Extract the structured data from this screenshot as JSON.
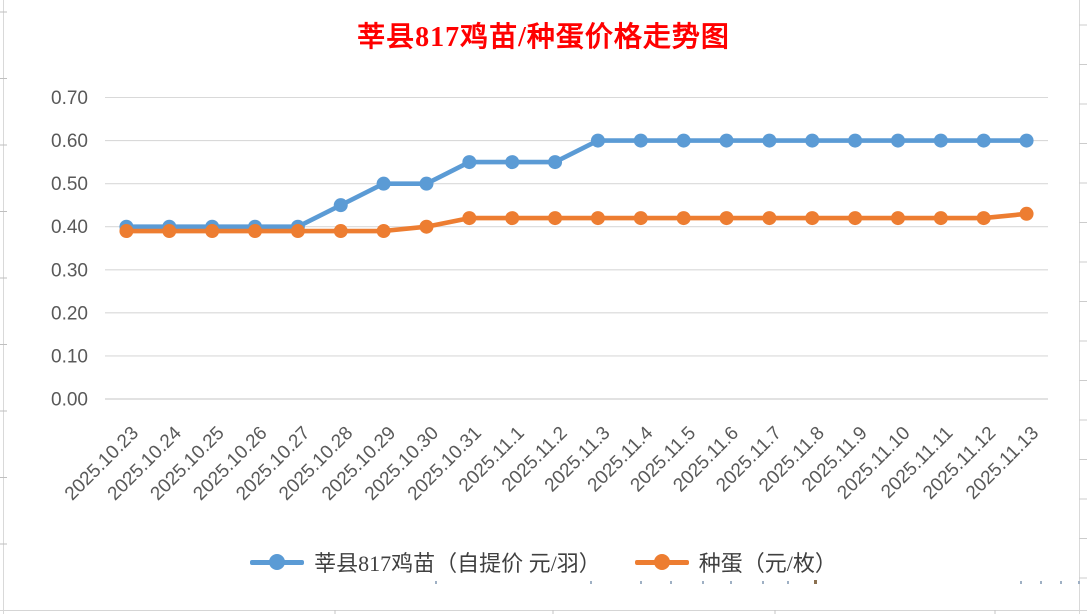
{
  "chart_data": {
    "type": "line",
    "title": "莘县817鸡苗/种蛋价格走势图",
    "title_color": "#FF0000",
    "xlabel": "",
    "ylabel": "",
    "categories": [
      "2025.10.23",
      "2025.10.24",
      "2025.10.25",
      "2025.10.26",
      "2025.10.27",
      "2025.10.28",
      "2025.10.29",
      "2025.10.30",
      "2025.10.31",
      "2025.11.1",
      "2025.11.2",
      "2025.11.3",
      "2025.11.4",
      "2025.11.5",
      "2025.11.6",
      "2025.11.7",
      "2025.11.8",
      "2025.11.9",
      "2025.11.10",
      "2025.11.11",
      "2025.11.12",
      "2025.11.13"
    ],
    "series": [
      {
        "name": "莘县817鸡苗（自提价 元/羽）",
        "color": "#5B9BD5",
        "values": [
          0.4,
          0.4,
          0.4,
          0.4,
          0.4,
          0.45,
          0.5,
          0.5,
          0.55,
          0.55,
          0.55,
          0.6,
          0.6,
          0.6,
          0.6,
          0.6,
          0.6,
          0.6,
          0.6,
          0.6,
          0.6,
          0.6
        ]
      },
      {
        "name": "种蛋（元/枚）",
        "color": "#ED7D31",
        "values": [
          0.39,
          0.39,
          0.39,
          0.39,
          0.39,
          0.39,
          0.39,
          0.4,
          0.42,
          0.42,
          0.42,
          0.42,
          0.42,
          0.42,
          0.42,
          0.42,
          0.42,
          0.42,
          0.42,
          0.42,
          0.42,
          0.43
        ]
      }
    ],
    "y_ticks": [
      "0.00",
      "0.10",
      "0.20",
      "0.30",
      "0.40",
      "0.50",
      "0.60",
      "0.70"
    ],
    "ylim": [
      0,
      0.7
    ],
    "grid": true,
    "legend_position": "bottom",
    "axis_text_color": "#595959",
    "gridline_color": "#D9D9D9"
  }
}
